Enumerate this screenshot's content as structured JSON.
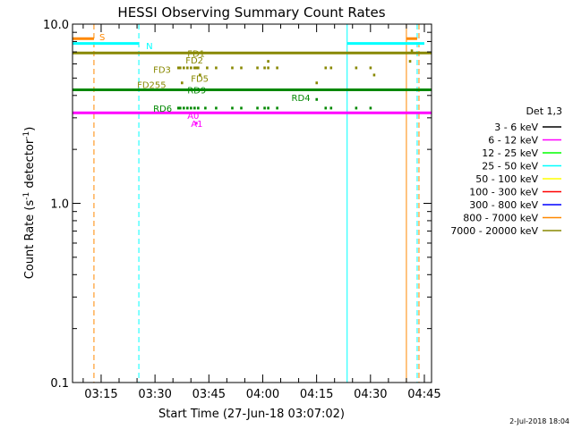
{
  "chart_data": {
    "type": "line",
    "title": "HESSI Observing Summary Count Rates",
    "xlabel": "Start Time (27-Jun-18 03:07:02)",
    "ylabel_main": "Count Rate (s",
    "ylabel_sup1": "-1",
    "ylabel_mid": " detector",
    "ylabel_sup2": "-1",
    "ylabel_end": ")",
    "y_scale": "log",
    "ylim": [
      0.1,
      10.0
    ],
    "xlim": [
      "03:07:02",
      "04:47:00"
    ],
    "x_ticks": [
      "03:15",
      "03:30",
      "03:45",
      "04:00",
      "04:15",
      "04:30",
      "04:45"
    ],
    "y_ticks": [
      "0.1",
      "1.0",
      "10.0"
    ],
    "legend_title": "Det 1,3",
    "legend_position": "right",
    "timestamp": "2-Jul-2018 18:04",
    "series": [
      {
        "name": "3 - 6 keV",
        "color": "#000000",
        "points": []
      },
      {
        "name": "6 - 12 keV",
        "color": "#ff00ff",
        "points": [
          [
            "03:07:02",
            3.2
          ],
          [
            "04:47:00",
            3.2
          ]
        ]
      },
      {
        "name": "12 - 25 keV",
        "color": "#00ff00",
        "points": []
      },
      {
        "name": "25 - 50 keV",
        "color": "#00ffff",
        "points": []
      },
      {
        "name": "50 - 100 keV",
        "color": "#ffff00",
        "points": []
      },
      {
        "name": "100 - 300 keV",
        "color": "#ff0000",
        "points": []
      },
      {
        "name": "300 - 800 keV",
        "color": "#0000ff",
        "points": []
      },
      {
        "name": "800 - 7000 keV",
        "color": "#ff8800",
        "points": []
      },
      {
        "name": "7000 - 20000 keV",
        "color": "#888800",
        "points": []
      }
    ],
    "mode_lines": [
      {
        "color": "#888800",
        "y": 6.9,
        "segments": [
          [
            "03:07:02",
            "04:47:00"
          ]
        ]
      },
      {
        "color": "#008800",
        "y": 4.3,
        "segments": [
          [
            "03:07:02",
            "04:47:00"
          ]
        ]
      },
      {
        "color": "#00ffff",
        "y": 7.8,
        "segments": [
          [
            "03:07:02",
            "03:25:30"
          ],
          [
            "04:23:30",
            "04:45:00"
          ]
        ]
      },
      {
        "color": "#ff8800",
        "y": 8.3,
        "segments": [
          [
            "03:07:02",
            "03:13:00"
          ],
          [
            "04:40:00",
            "04:43:00"
          ]
        ]
      }
    ],
    "vlines": [
      {
        "time": "03:13:00",
        "color": "#ff8800",
        "style": "dashed"
      },
      {
        "time": "03:25:30",
        "color": "#00ffff",
        "style": "dashed"
      },
      {
        "time": "04:23:30",
        "color": "#00ffff",
        "style": "solid"
      },
      {
        "time": "04:40:00",
        "color": "#ff8800",
        "style": "solid"
      },
      {
        "time": "04:43:30",
        "color": "#ff8800",
        "style": "dashed"
      },
      {
        "time": "04:43:00",
        "color": "#00ffff",
        "style": "dashed"
      }
    ],
    "annotations": [
      {
        "text": "S",
        "time": "03:14:30",
        "y": 8.5,
        "color": "#ff8800"
      },
      {
        "text": "N",
        "time": "03:27:30",
        "y": 7.6,
        "color": "#00ffff"
      },
      {
        "text": "FD1",
        "time": "03:39:00",
        "y": 6.9,
        "color": "#888800"
      },
      {
        "text": "FD2",
        "time": "03:38:30",
        "y": 6.3,
        "color": "#888800"
      },
      {
        "text": "FD3",
        "time": "03:29:30",
        "y": 5.6,
        "color": "#888800"
      },
      {
        "text": "FD5",
        "time": "03:40:00",
        "y": 5.0,
        "color": "#888800"
      },
      {
        "text": "FD255",
        "time": "03:25:00",
        "y": 4.6,
        "color": "#888800"
      },
      {
        "text": "RD9",
        "time": "03:39:00",
        "y": 4.3,
        "color": "#008800"
      },
      {
        "text": "RD4",
        "time": "04:08:00",
        "y": 3.9,
        "color": "#008800"
      },
      {
        "text": "RD6",
        "time": "03:29:30",
        "y": 3.4,
        "color": "#008800"
      },
      {
        "text": "A0",
        "time": "03:39:00",
        "y": 3.1,
        "color": "#ff00ff"
      },
      {
        "text": "A1",
        "time": "03:40:00",
        "y": 2.8,
        "color": "#ff00ff"
      }
    ],
    "dots": [
      {
        "color": "#888800",
        "y": 5.7,
        "times": [
          "03:36:30",
          "03:37:00",
          "03:38:00",
          "03:39:00",
          "03:40:00",
          "03:41:00",
          "03:41:30",
          "03:42:00",
          "03:44:30",
          "03:47:00",
          "03:51:30",
          "03:54:00",
          "03:58:30",
          "04:00:30",
          "04:01:30",
          "04:04:00",
          "04:17:30",
          "04:19:00",
          "04:26:00",
          "04:30:00"
        ]
      },
      {
        "color": "#888800",
        "y": 6.2,
        "times": [
          "04:01:30",
          "04:41:00"
        ]
      },
      {
        "color": "#888800",
        "y": 5.2,
        "times": [
          "03:42:30",
          "04:31:00"
        ]
      },
      {
        "color": "#888800",
        "y": 4.7,
        "times": [
          "03:37:30",
          "04:15:00"
        ]
      },
      {
        "color": "#888800",
        "y": 7.1,
        "times": [
          "04:41:30"
        ]
      },
      {
        "color": "#008800",
        "y": 3.4,
        "times": [
          "03:36:30",
          "03:37:00",
          "03:38:00",
          "03:39:00",
          "03:40:00",
          "03:41:00",
          "03:42:00",
          "03:44:00",
          "03:47:00",
          "03:51:30",
          "03:54:00",
          "03:58:30",
          "04:00:30",
          "04:01:30",
          "04:04:00",
          "04:17:30",
          "04:19:00",
          "04:26:00",
          "04:30:00"
        ]
      },
      {
        "color": "#008800",
        "y": 3.8,
        "times": [
          "04:15:00"
        ]
      },
      {
        "color": "#ff00ff",
        "y": 2.8,
        "times": [
          "03:41:30"
        ]
      }
    ]
  }
}
